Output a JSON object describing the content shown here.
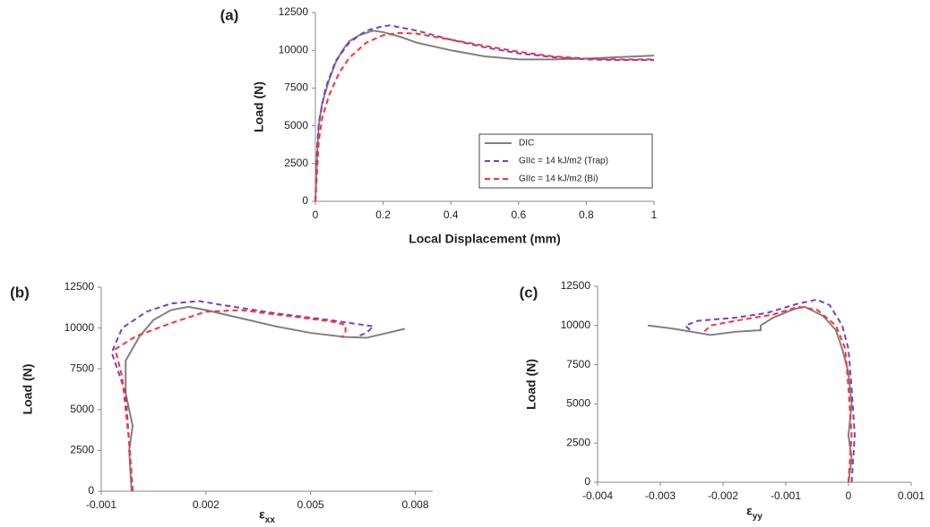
{
  "chart_data": [
    {
      "type": "line",
      "title": "(a)",
      "x_label": "Local Displacement (mm)",
      "y_label": "Load (N)",
      "xlim": [
        0,
        1
      ],
      "xticks": [
        0,
        0.2,
        0.4,
        0.6,
        0.8,
        1
      ],
      "ylim": [
        0,
        12500
      ],
      "yticks": [
        0,
        2500,
        5000,
        7500,
        10000,
        12500
      ],
      "legend": "lower right",
      "series": [
        {
          "name": "DIC",
          "color": "#808080",
          "style": "solid",
          "x": [
            0,
            0.005,
            0.01,
            0.02,
            0.04,
            0.06,
            0.08,
            0.1,
            0.13,
            0.17,
            0.2,
            0.25,
            0.3,
            0.4,
            0.5,
            0.6,
            0.7,
            0.8,
            0.9,
            1.0
          ],
          "values": [
            0,
            3000,
            5000,
            6500,
            8000,
            9200,
            10000,
            10600,
            11000,
            11300,
            11200,
            10900,
            10500,
            10000,
            9600,
            9400,
            9400,
            9450,
            9550,
            9650
          ]
        },
        {
          "name": "GIIc = 14 kJ/m2 (Trap)",
          "color": "#7b3fc4",
          "style": "dashed",
          "x": [
            0,
            0.005,
            0.01,
            0.03,
            0.06,
            0.1,
            0.15,
            0.2,
            0.22,
            0.3,
            0.4,
            0.5,
            0.6,
            0.7,
            0.8,
            0.9,
            1.0
          ],
          "values": [
            0,
            3500,
            5200,
            7500,
            9300,
            10500,
            11300,
            11600,
            11650,
            11300,
            10700,
            10200,
            9800,
            9550,
            9400,
            9350,
            9350
          ]
        },
        {
          "name": "GIIc = 14 kJ/m2 (Bi)",
          "color": "#ff3030",
          "style": "dashed",
          "x": [
            0,
            0.01,
            0.02,
            0.04,
            0.07,
            0.1,
            0.15,
            0.2,
            0.25,
            0.3,
            0.4,
            0.5,
            0.6,
            0.7,
            0.8,
            0.9,
            1.0
          ],
          "values": [
            0,
            4000,
            5500,
            7000,
            8500,
            9500,
            10500,
            11000,
            11150,
            11100,
            10700,
            10300,
            9900,
            9600,
            9450,
            9400,
            9400
          ]
        }
      ]
    },
    {
      "type": "line",
      "title": "(b)",
      "x_label": "εxx",
      "y_label": "Load (N)",
      "xlim": [
        -0.001,
        0.0085
      ],
      "xticks": [
        -0.001,
        0.002,
        0.005,
        0.008
      ],
      "ylim": [
        0,
        12500
      ],
      "yticks": [
        0,
        2500,
        5000,
        7500,
        10000,
        12500
      ],
      "series": [
        {
          "color": "#808080",
          "style": "solid",
          "x": [
            -0.00013,
            -0.0002,
            -0.0001,
            -0.0003,
            -0.0003,
            0.0001,
            0.0005,
            0.001,
            0.0015,
            0.002,
            0.003,
            0.004,
            0.005,
            0.006,
            0.0066,
            0.0072,
            0.0077
          ],
          "values": [
            0,
            2500,
            4000,
            6000,
            8000,
            9500,
            10500,
            11100,
            11300,
            11100,
            10600,
            10100,
            9700,
            9450,
            9400,
            9700,
            9950
          ]
        },
        {
          "color": "#7b3fc4",
          "style": "dashed",
          "x": [
            -0.0001,
            -0.0002,
            -0.0003,
            -0.0007,
            -0.0004,
            0.0003,
            0.001,
            0.0018,
            0.0025,
            0.004,
            0.0055,
            0.0068,
            0.0066,
            0.0063
          ],
          "values": [
            0,
            3000,
            6000,
            8500,
            10000,
            11000,
            11500,
            11650,
            11400,
            10900,
            10500,
            10100,
            9700,
            9450
          ]
        },
        {
          "color": "#ff3030",
          "style": "dashed",
          "x": [
            -0.0001,
            -0.0002,
            -0.0004,
            -0.0006,
            0,
            0.001,
            0.002,
            0.003,
            0.0045,
            0.0056,
            0.006,
            0.006,
            0.0059
          ],
          "values": [
            0,
            3000,
            7000,
            8700,
            9500,
            10300,
            11000,
            11100,
            10700,
            10400,
            10200,
            9700,
            9400
          ]
        }
      ]
    },
    {
      "type": "line",
      "title": "(c)",
      "x_label": "εyy",
      "y_label": "Load (N)",
      "xlim": [
        -0.004,
        0.001
      ],
      "xticks": [
        -0.004,
        -0.003,
        -0.002,
        -0.001,
        0,
        0.001
      ],
      "ylim": [
        0,
        12500
      ],
      "yticks": [
        0,
        2500,
        5000,
        7500,
        10000,
        12500
      ],
      "series": [
        {
          "color": "#808080",
          "style": "solid",
          "x": [
            0,
            5e-05,
            0,
            5e-05,
            0,
            -0.0001,
            -0.0002,
            -0.0004,
            -0.0007,
            -0.0009,
            -0.0012,
            -0.0014,
            -0.0014,
            -0.0018,
            -0.0022,
            -0.0025,
            -0.0028,
            -0.0032
          ],
          "values": [
            0,
            1500,
            3000,
            5000,
            7000,
            8500,
            9700,
            10600,
            11200,
            11000,
            10500,
            10000,
            9700,
            9600,
            9400,
            9600,
            9800,
            10000
          ]
        },
        {
          "color": "#7b3fc4",
          "style": "dashed",
          "x": [
            5e-05,
            0.0001,
            5e-05,
            0,
            -0.0001,
            -0.0003,
            -0.0005,
            -0.0008,
            -0.0013,
            -0.0018,
            -0.0024,
            -0.0026,
            -0.0025
          ],
          "values": [
            0,
            3000,
            6000,
            8500,
            10000,
            11300,
            11650,
            11400,
            10800,
            10500,
            10300,
            10000,
            9600
          ]
        },
        {
          "color": "#ff3030",
          "style": "dashed",
          "x": [
            0,
            5e-05,
            0,
            -5e-05,
            -0.0002,
            -0.0005,
            -0.0008,
            -0.0012,
            -0.0018,
            -0.0022,
            -0.0023
          ],
          "values": [
            0,
            3000,
            6000,
            8500,
            10000,
            11000,
            11200,
            10700,
            10300,
            10000,
            9600
          ]
        }
      ]
    }
  ]
}
